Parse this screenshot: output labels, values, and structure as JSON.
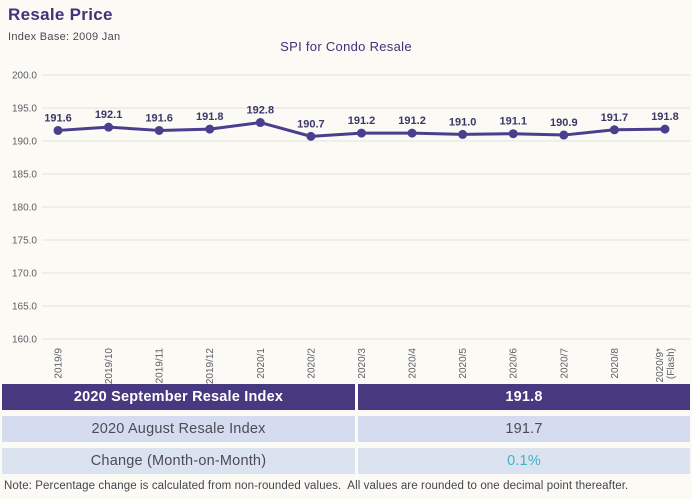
{
  "page": {
    "title": "Resale Price",
    "subtitle": "Index Base: 2009 Jan",
    "note": "Note: Percentage change is calculated from non-rounded values.  All values are rounded to one decimal point thereafter."
  },
  "chart_data": {
    "type": "line",
    "title": "SPI for Condo Resale",
    "categories": [
      "2019/9",
      "2019/10",
      "2019/11",
      "2019/12",
      "2020/1",
      "2020/2",
      "2020/3",
      "2020/4",
      "2020/5",
      "2020/6",
      "2020/7",
      "2020/8",
      "2020/9*\n(Flash)"
    ],
    "values": [
      191.6,
      192.1,
      191.6,
      191.8,
      192.8,
      190.7,
      191.2,
      191.2,
      191.0,
      191.1,
      190.9,
      191.7,
      191.8
    ],
    "xlabel": "",
    "ylabel": "",
    "ylim": [
      160.0,
      200.0
    ],
    "y_ticks": [
      "200.0",
      "195.0",
      "190.0",
      "185.0",
      "180.0",
      "175.0",
      "170.0",
      "165.0",
      "160.0"
    ],
    "grid": true,
    "legend": "none",
    "data_labels": true,
    "marker": "circle"
  },
  "table": {
    "rows": [
      {
        "label": "2020 September Resale Index",
        "value": "191.8"
      },
      {
        "label": "2020 August Resale Index",
        "value": "191.7"
      },
      {
        "label": "Change (Month-on-Month)",
        "value": "0.1%"
      }
    ]
  },
  "colors": {
    "accent_purple": "#40327b",
    "line_purple": "#4a3f8f",
    "table_header_bg": "#46397f",
    "table_row2_bg": "#d6dcef",
    "table_row3_bg": "#dbe2f0",
    "change_teal": "#3fb4c6",
    "axis_text": "#5d5d66",
    "gridline": "#e3e2dd",
    "background": "#fbfaf4"
  }
}
